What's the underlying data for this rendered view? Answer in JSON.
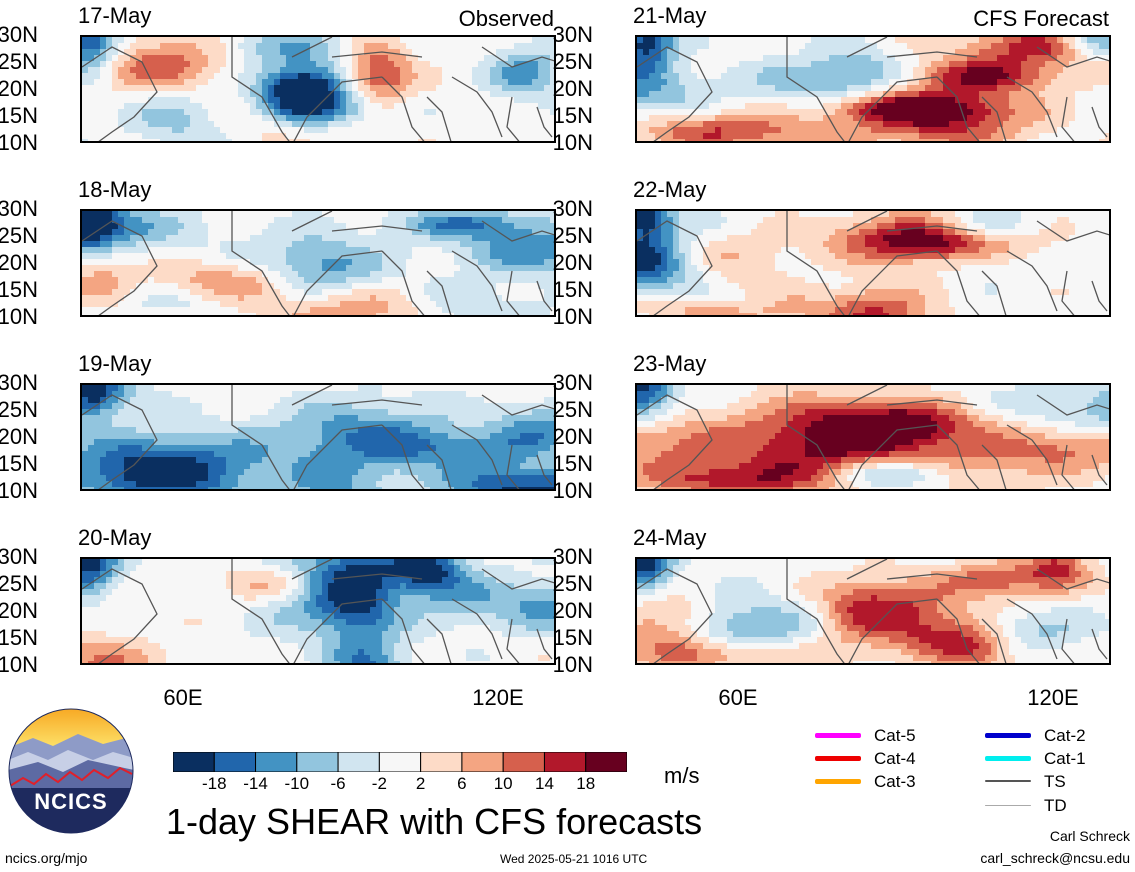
{
  "panels": [
    {
      "date": "17-May",
      "corner": "Observed"
    },
    {
      "date": "18-May",
      "corner": ""
    },
    {
      "date": "19-May",
      "corner": ""
    },
    {
      "date": "20-May",
      "corner": ""
    },
    {
      "date": "21-May",
      "corner": "CFS Forecast"
    },
    {
      "date": "22-May",
      "corner": ""
    },
    {
      "date": "23-May",
      "corner": ""
    },
    {
      "date": "24-May",
      "corner": ""
    }
  ],
  "lat_labels": [
    "30N",
    "25N",
    "20N",
    "15N",
    "10N"
  ],
  "lon_labels": [
    "60E",
    "120E"
  ],
  "colorbar": {
    "ticks": [
      "-18",
      "-14",
      "-10",
      "-6",
      "-2",
      "2",
      "6",
      "10",
      "14",
      "18"
    ],
    "unit": "m/s",
    "colors": [
      "#0a2f60",
      "#2166ac",
      "#4393c3",
      "#92c5de",
      "#d1e5f0",
      "#f7f7f7",
      "#fddbc7",
      "#f4a582",
      "#d6604d",
      "#b2182b",
      "#67001f"
    ]
  },
  "legend": [
    {
      "label": "Cat-5",
      "color": "#ff00ff",
      "weight": "thick"
    },
    {
      "label": "Cat-4",
      "color": "#ee0000",
      "weight": "thick"
    },
    {
      "label": "Cat-3",
      "color": "#ffa500",
      "weight": "thick"
    },
    {
      "label": "Cat-2",
      "color": "#0000cc",
      "weight": "thick"
    },
    {
      "label": "Cat-1",
      "color": "#00eeee",
      "weight": "thick"
    },
    {
      "label": "TS",
      "color": "#555555",
      "weight": "medium"
    },
    {
      "label": "TD",
      "color": "#aaaaaa",
      "weight": "thin"
    }
  ],
  "logo_text": "NCICS",
  "title": "1-day SHEAR with CFS forecasts",
  "footer": {
    "left": "ncics.org/mjo",
    "center": "Wed 2025-05-21 1016 UTC",
    "author": "Carl Schreck",
    "email": "carl_schreck@ncsu.edu"
  }
}
